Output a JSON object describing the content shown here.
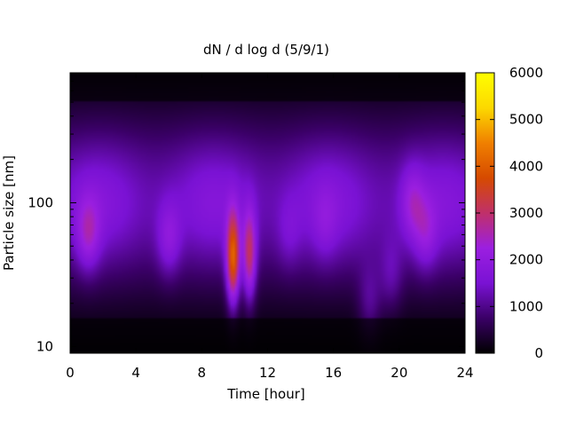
{
  "chart_data": {
    "type": "heatmap",
    "title": "dN / d log d (5/9/1)",
    "xlabel": "Time [hour]",
    "ylabel": "Particle size [nm]",
    "x_range": [
      0,
      24
    ],
    "x_ticks": [
      0,
      4,
      8,
      12,
      16,
      20,
      24
    ],
    "x_tick_labels": [
      "0",
      "4",
      "8",
      "12",
      "16",
      "20",
      "24"
    ],
    "y_scale": "log",
    "y_range": [
      9,
      800
    ],
    "y_ticks": [
      10,
      100
    ],
    "y_tick_labels": [
      "10",
      "100"
    ],
    "colorbar": {
      "range": [
        0,
        6000
      ],
      "ticks": [
        0,
        1000,
        2000,
        3000,
        4000,
        5000,
        6000
      ],
      "tick_labels": [
        "0",
        "1000",
        "2000",
        "3000",
        "4000",
        "5000",
        "6000"
      ],
      "palette": [
        "#000000",
        "#3a0066",
        "#7a12d4",
        "#9b1fe0",
        "#c0306a",
        "#d64a00",
        "#f08000",
        "#fcd800",
        "#ffff00"
      ]
    },
    "features": [
      {
        "time": 1.1,
        "size": 60,
        "peak": 2600
      },
      {
        "time": 6.0,
        "size": 55,
        "peak": 2400
      },
      {
        "time": 9.9,
        "size": 40,
        "peak": 4600
      },
      {
        "time": 10.9,
        "size": 42,
        "peak": 3600
      },
      {
        "time": 13.3,
        "size": 60,
        "peak": 1900
      },
      {
        "time": 15.5,
        "size": 70,
        "peak": 1900
      },
      {
        "time": 18.2,
        "size": 20,
        "peak": 2200
      },
      {
        "time": 19.5,
        "size": 30,
        "peak": 2100
      },
      {
        "time": 20.8,
        "size": 100,
        "peak": 2400
      },
      {
        "time": 21.6,
        "size": 60,
        "peak": 2300
      }
    ],
    "grid": false,
    "legend": "colorbar-right"
  }
}
